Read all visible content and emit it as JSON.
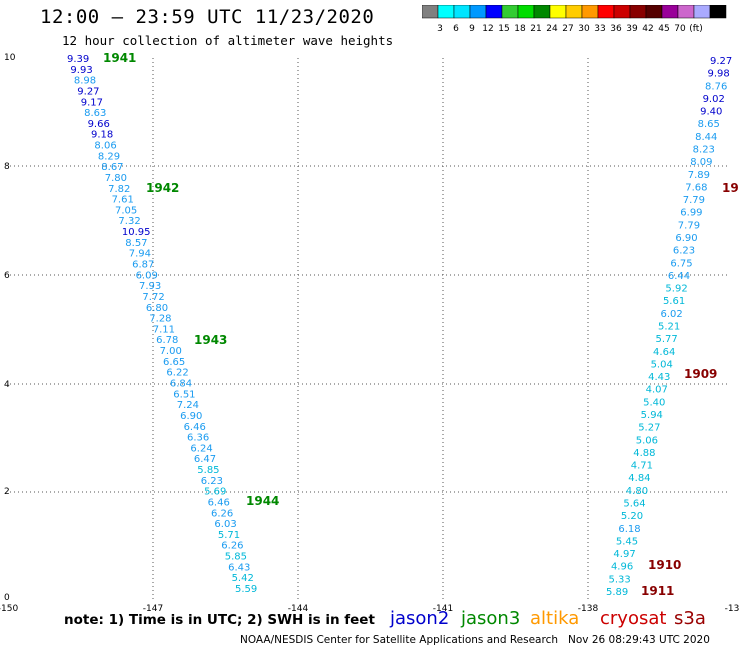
{
  "header": {
    "title": "12:00 — 23:59 UTC 11/23/2020",
    "subtitle": "12 hour collection of altimeter wave heights"
  },
  "legend": {
    "colors": [
      "#808080",
      "#00ffff",
      "#00e5ff",
      "#0099ff",
      "#0000ff",
      "#33cc33",
      "#00dd00",
      "#008800",
      "#ffff00",
      "#ffcc00",
      "#ff9900",
      "#ff0000",
      "#cc0000",
      "#880000",
      "#550000",
      "#990099",
      "#cc66cc",
      "#aaaaff",
      "#000000"
    ],
    "labels": [
      "3",
      "6",
      "9",
      "12",
      "15",
      "18",
      "21",
      "24",
      "27",
      "30",
      "33",
      "36",
      "39",
      "42",
      "45",
      "70",
      "(ft)"
    ]
  },
  "axes": {
    "x_ticks": [
      "-150",
      "-147",
      "-144",
      "-141",
      "-138",
      "-13"
    ],
    "y_ticks": [
      "10",
      "8",
      "6",
      "4",
      "2",
      "0"
    ]
  },
  "tracks": [
    {
      "values": [
        "9.39",
        "9.93",
        "8.98",
        "9.27",
        "9.17",
        "8.63",
        "9.66",
        "9.18",
        "8.06",
        "8.29",
        "8.67",
        "7.80",
        "7.82",
        "7.61",
        "7.05",
        "7.32",
        "10.95",
        "8.57",
        "7.94",
        "6.87",
        "6.09",
        "7.93",
        "7.72",
        "6.80",
        "7.28",
        "7.11",
        "6.78",
        "7.00",
        "6.65",
        "6.22",
        "6.84",
        "6.51",
        "7.24",
        "6.90",
        "6.46",
        "6.36",
        "6.24",
        "6.47",
        "5.85",
        "6.23",
        "5.69",
        "6.46",
        "6.26",
        "6.03",
        "5.71",
        "6.26",
        "5.85",
        "6.43",
        "5.42",
        "5.59"
      ],
      "passes": [
        {
          "label": "1941",
          "color": "#008800"
        },
        {
          "label": "1942",
          "color": "#008800"
        },
        {
          "label": "1943",
          "color": "#008800"
        },
        {
          "label": "1944",
          "color": "#008800"
        }
      ]
    },
    {
      "values": [
        "9.27",
        "9.98",
        "8.76",
        "9.02",
        "9.40",
        "8.65",
        "8.44",
        "8.23",
        "8.09",
        "7.89",
        "7.68",
        "7.79",
        "6.99",
        "7.79",
        "6.90",
        "6.23",
        "6.75",
        "6.44",
        "5.92",
        "5.61",
        "6.02",
        "5.21",
        "5.77",
        "4.64",
        "5.04",
        "4.43",
        "4.07",
        "5.40",
        "5.94",
        "5.27",
        "5.06",
        "4.88",
        "4.71",
        "4.84",
        "4.80",
        "5.64",
        "5.20",
        "6.18",
        "5.45",
        "4.97",
        "4.96",
        "5.33",
        "5.89"
      ],
      "passes": [
        {
          "label": "19",
          "color": "#880000"
        },
        {
          "label": "1909",
          "color": "#880000"
        },
        {
          "label": "1910",
          "color": "#880000"
        },
        {
          "label": "1911",
          "color": "#880000"
        }
      ]
    }
  ],
  "footer": {
    "note": "note: 1) Time is in UTC; 2) SWH is in feet",
    "credit": "NOAA/NESDIS Center for Satellite Applications and Research   Nov 26 08:29:43 UTC 2020"
  },
  "satellites": [
    {
      "name": "jason2",
      "color": "#0000cc"
    },
    {
      "name": "jason3",
      "color": "#008800"
    },
    {
      "name": "altika",
      "color": "#ff9900"
    },
    {
      "name": "cryosat",
      "color": "#cc0000"
    },
    {
      "name": "s3a",
      "color": "#990000"
    }
  ]
}
